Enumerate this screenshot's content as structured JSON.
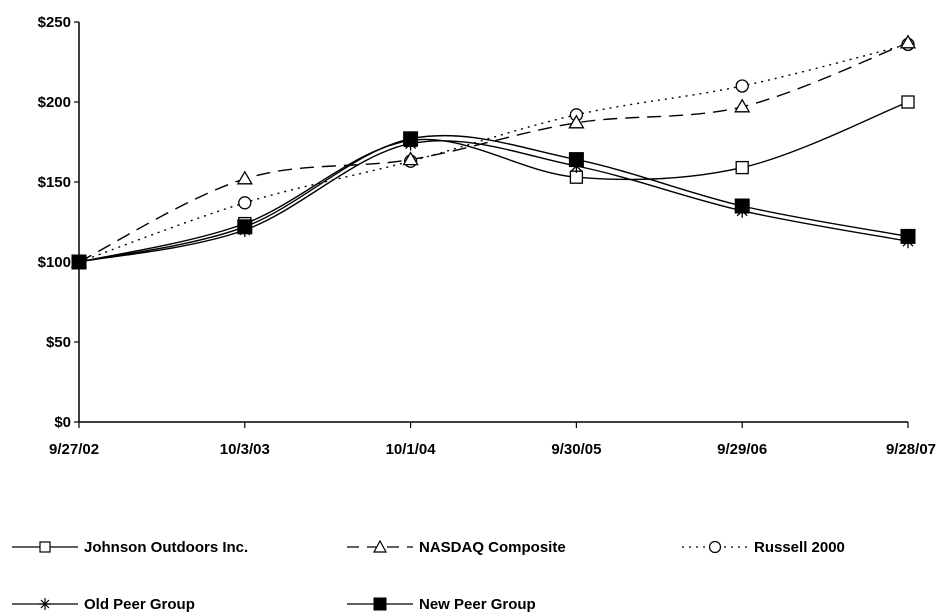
{
  "chart_data": {
    "type": "line",
    "title": "",
    "xlabel": "",
    "ylabel": "",
    "categories": [
      "9/27/02",
      "10/3/03",
      "10/1/04",
      "9/30/05",
      "9/29/06",
      "9/28/07"
    ],
    "ylim": [
      0,
      250
    ],
    "yticks": [
      0,
      50,
      100,
      150,
      200,
      250
    ],
    "ytick_labels": [
      "$0",
      "$50",
      "$100",
      "$150",
      "$200",
      "$250"
    ],
    "grid": false,
    "legend_position": "bottom",
    "series": [
      {
        "name": "Johnson Outdoors Inc.",
        "values": [
          100,
          124,
          176,
          153,
          159,
          200
        ],
        "marker": "square-open",
        "line": "solid",
        "color": "#000000"
      },
      {
        "name": "NASDAQ Composite",
        "values": [
          100,
          152,
          164,
          187,
          197,
          237
        ],
        "marker": "triangle-open",
        "line": "dashed",
        "color": "#000000"
      },
      {
        "name": "Russell 2000",
        "values": [
          100,
          137,
          163,
          192,
          210,
          236
        ],
        "marker": "circle-open",
        "line": "dotted",
        "color": "#000000"
      },
      {
        "name": "Old Peer Group",
        "values": [
          100,
          120,
          174,
          160,
          132,
          113
        ],
        "marker": "star",
        "line": "solid",
        "color": "#000000"
      },
      {
        "name": "New Peer Group",
        "values": [
          100,
          122,
          177,
          164,
          135,
          116
        ],
        "marker": "square-filled",
        "line": "solid",
        "color": "#000000"
      }
    ]
  }
}
